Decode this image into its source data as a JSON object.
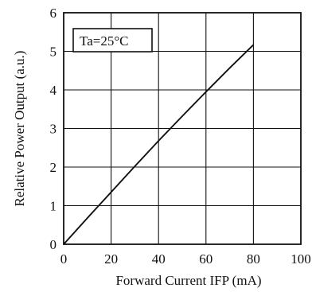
{
  "chart_data": {
    "type": "line",
    "title": "",
    "xlabel": "Forward Current  IFP (mA)",
    "ylabel": "Relative Power Output  (a.u.)",
    "xlim": [
      0,
      100
    ],
    "ylim": [
      0,
      6
    ],
    "x_ticks": [
      0,
      20,
      40,
      60,
      80,
      100
    ],
    "y_ticks": [
      0,
      1,
      2,
      3,
      4,
      5,
      6
    ],
    "grid": true,
    "annotation": "Ta=25°C",
    "series": [
      {
        "x": [
          0,
          10,
          20,
          30,
          40,
          50,
          60,
          70,
          80
        ],
        "y": [
          0,
          0.68,
          1.35,
          2.02,
          2.68,
          3.32,
          3.95,
          4.57,
          5.17
        ]
      }
    ],
    "colors": {
      "line": "#111111",
      "grid": "#111111",
      "background": "#ffffff"
    }
  }
}
